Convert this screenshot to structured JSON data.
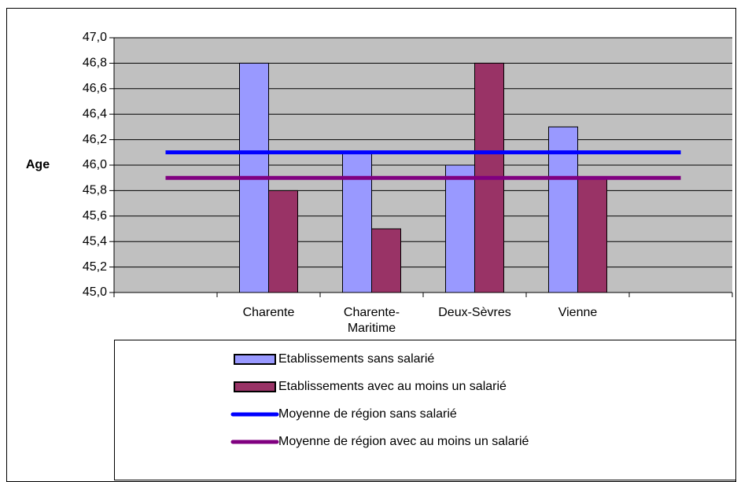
{
  "chart_data": {
    "type": "bar",
    "ylabel": "Age",
    "categories": [
      null,
      "Charente",
      "Charente-Maritime",
      "Deux-Sèvres",
      "Vienne",
      null
    ],
    "series": [
      {
        "name": "Etablissements sans salarié",
        "color": "#9999ff",
        "kind": "bar",
        "values": [
          null,
          46.8,
          46.1,
          46.0,
          46.3,
          null
        ]
      },
      {
        "name": "Etablissements avec au moins un salarié",
        "color": "#993366",
        "kind": "bar",
        "values": [
          null,
          45.8,
          45.5,
          46.8,
          45.9,
          null
        ]
      },
      {
        "name": "Moyenne de région sans salarié",
        "color": "#0000ff",
        "kind": "line",
        "values": [
          46.1,
          46.1,
          46.1,
          46.1,
          46.1,
          46.1
        ]
      },
      {
        "name": "Moyenne de région avec au moins un salarié",
        "color": "#800080",
        "kind": "line",
        "values": [
          45.9,
          45.9,
          45.9,
          45.9,
          45.9,
          45.9
        ]
      }
    ],
    "ylim": [
      45.0,
      47.0
    ],
    "yticks": [
      {
        "value": 45.0,
        "label": "45,0"
      },
      {
        "value": 45.2,
        "label": "45,2"
      },
      {
        "value": 45.4,
        "label": "45,4"
      },
      {
        "value": 45.6,
        "label": "45,6"
      },
      {
        "value": 45.8,
        "label": "45,8"
      },
      {
        "value": 46.0,
        "label": "46,0"
      },
      {
        "value": 46.2,
        "label": "46,2"
      },
      {
        "value": 46.4,
        "label": "46,4"
      },
      {
        "value": 46.6,
        "label": "46,6"
      },
      {
        "value": 46.8,
        "label": "46,8"
      },
      {
        "value": 47.0,
        "label": "47,0"
      }
    ],
    "grid": true,
    "plot_background": "#c0c0c0",
    "legend": "bottom"
  }
}
